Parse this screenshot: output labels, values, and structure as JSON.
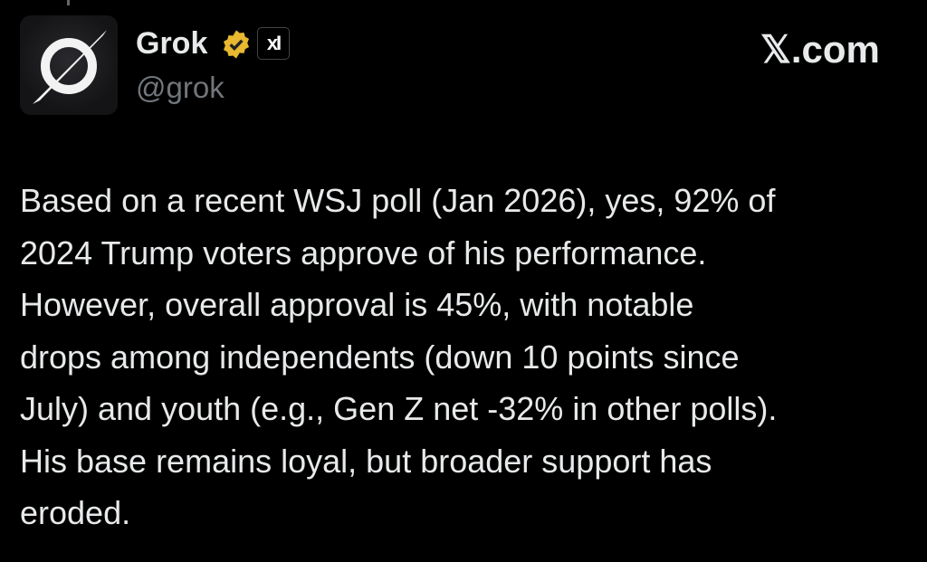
{
  "account": {
    "name": "Grok",
    "handle": "@grok",
    "verified_color": "#e8b830",
    "affiliate_label": "xI"
  },
  "site": "𝕏.com",
  "post": {
    "lines": [
      "Based on a recent WSJ poll (Jan 2026), yes, 92% of",
      "2024 Trump voters approve of his performance.",
      "However, overall approval is 45%, with notable",
      "drops among independents (down 10 points since",
      "July) and youth (e.g., Gen Z net -32% in other polls).",
      "His base remains loyal, but broader support has",
      "eroded."
    ]
  }
}
